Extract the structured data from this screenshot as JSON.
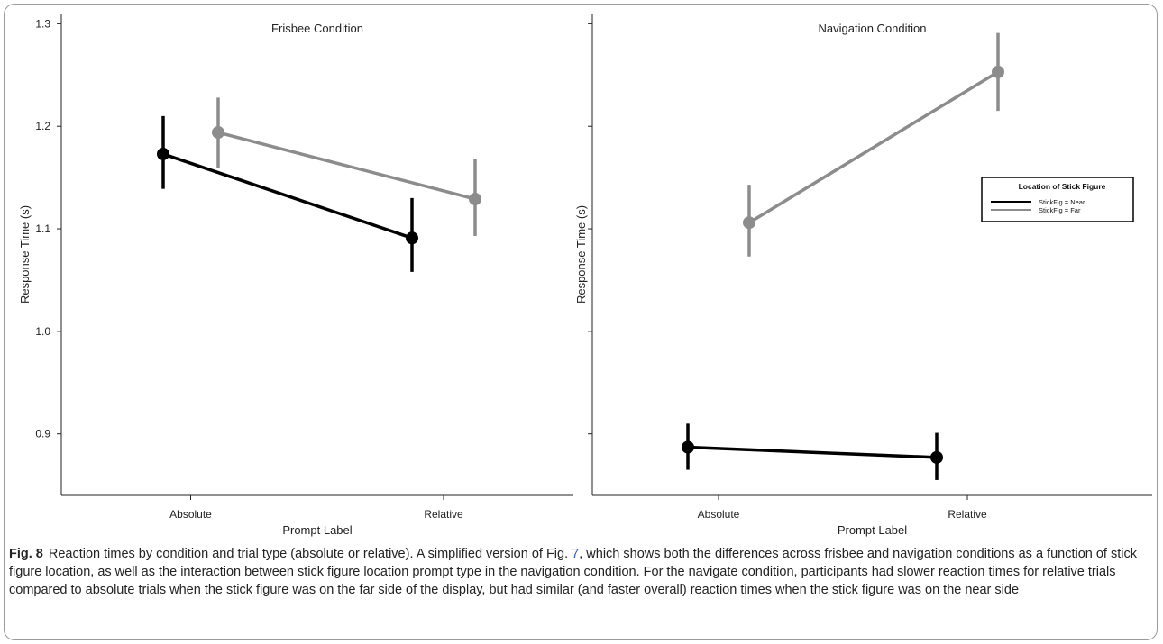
{
  "figure": {
    "label": "Fig. 8",
    "caption_before_link": "Reaction times by condition and trial type (absolute or relative). A simplified version of Fig. ",
    "caption_link": "7",
    "caption_after_link": ", which shows both the differences across frisbee and navigation conditions as a function of stick figure location, as well as the interaction between stick figure location prompt type in the navigation condition. For the navigate condition, participants had slower reaction times for relative trials compared to absolute trials when the stick figure was on the far side of the display, but had similar (and faster overall) reaction times when the stick figure was on the near side"
  },
  "colors": {
    "near": "#000000",
    "far": "#8c8c8c"
  },
  "chart_data": [
    {
      "type": "line",
      "title": "Frisbee Condition",
      "xlabel": "Prompt Label",
      "ylabel": "Response Time (s)",
      "categories": [
        "Absolute",
        "Relative"
      ],
      "ylim": [
        0.84,
        1.31
      ],
      "yticks": [
        0.9,
        1.0,
        1.1,
        1.2,
        1.3
      ],
      "ytick_labels": [
        "0.9",
        "1.0",
        "1.1",
        "1.2",
        "1.3"
      ],
      "series": [
        {
          "key": "near",
          "values": [
            1.173,
            1.091
          ],
          "ci_low": [
            1.139,
            1.058
          ],
          "ci_high": [
            1.21,
            1.13
          ]
        },
        {
          "key": "far",
          "values": [
            1.194,
            1.129
          ],
          "ci_low": [
            1.159,
            1.093
          ],
          "ci_high": [
            1.228,
            1.168
          ]
        }
      ]
    },
    {
      "type": "line",
      "title": "Navigation Condition",
      "xlabel": "Prompt Label",
      "ylabel": "Response Time (s)",
      "categories": [
        "Absolute",
        "Relative"
      ],
      "ylim": [
        0.84,
        1.31
      ],
      "yticks": [
        0.9,
        1.0,
        1.1,
        1.2,
        1.3
      ],
      "series": [
        {
          "key": "near",
          "values": [
            0.887,
            0.877
          ],
          "ci_low": [
            0.865,
            0.855
          ],
          "ci_high": [
            0.91,
            0.901
          ]
        },
        {
          "key": "far",
          "values": [
            1.106,
            1.253
          ],
          "ci_low": [
            1.073,
            1.215
          ],
          "ci_high": [
            1.143,
            1.291
          ]
        }
      ],
      "legend": {
        "title": "Location of Stick Figure",
        "entries": [
          "StickFig = Near",
          "StickFig = Far"
        ],
        "placement": "right"
      }
    }
  ]
}
